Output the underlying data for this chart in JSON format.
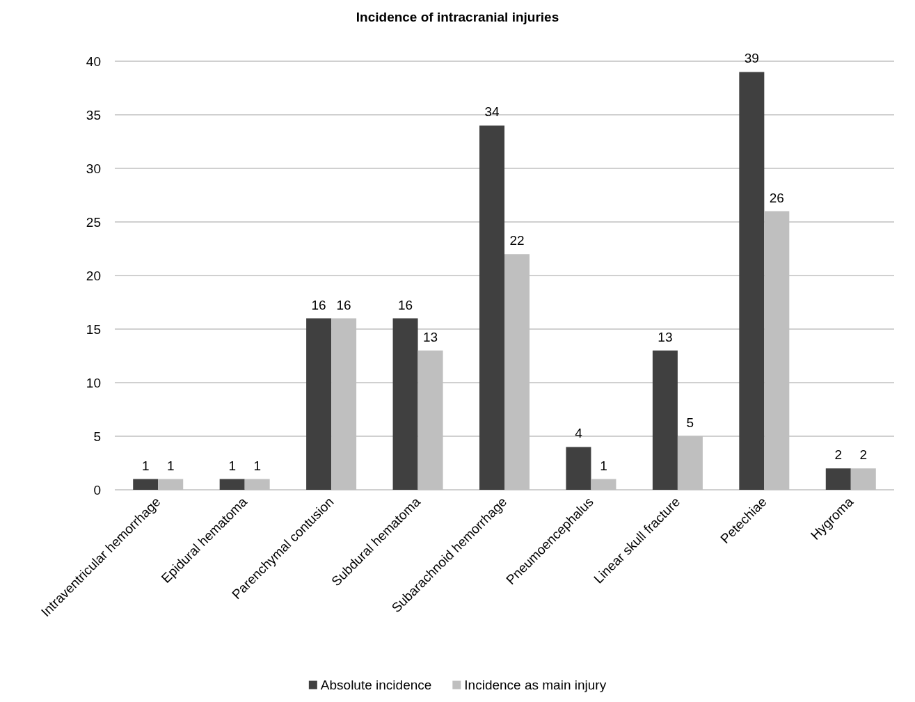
{
  "chart_data": {
    "type": "bar",
    "title": "Incidence of intracranial injuries",
    "categories": [
      "Intraventricular hemorrhage",
      "Epidural hematoma",
      "Parenchymal contusion",
      "Subdural hematoma",
      "Subarachnoid hemorrhage",
      "Pneumoencephalus",
      "Linear skull fracture",
      "Petechiae",
      "Hygroma"
    ],
    "series": [
      {
        "name": "Absolute incidence",
        "color": "#404040",
        "values": [
          1,
          1,
          16,
          16,
          34,
          4,
          13,
          39,
          2
        ]
      },
      {
        "name": "Incidence as main injury",
        "color": "#bfbfbf",
        "values": [
          1,
          1,
          16,
          13,
          22,
          1,
          5,
          26,
          2
        ]
      }
    ],
    "ylim": [
      0,
      40
    ],
    "yticks": [
      0,
      5,
      10,
      15,
      20,
      25,
      30,
      35,
      40
    ],
    "grid": "y",
    "legend": "bottom",
    "data_labels": true
  }
}
